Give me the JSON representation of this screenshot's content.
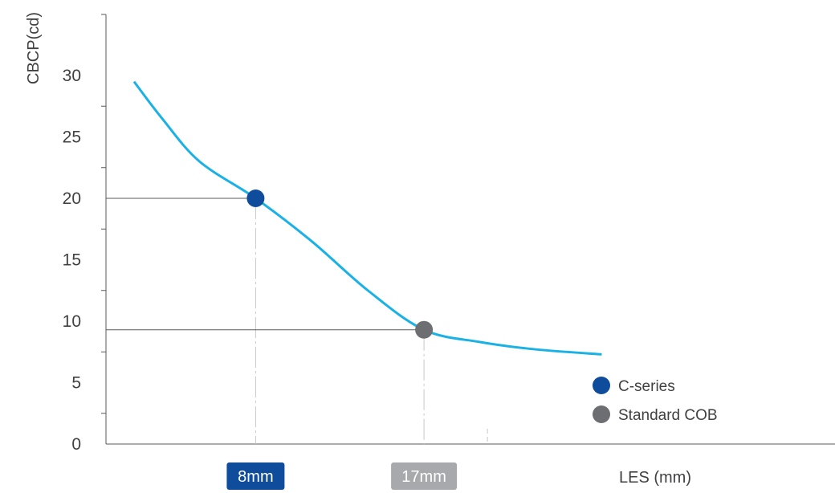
{
  "chart_data": {
    "type": "line",
    "ylabel": "CBCP(cd)",
    "xlabel": "LES (mm)",
    "yticks": [
      0,
      5,
      10,
      15,
      20,
      25,
      30
    ],
    "ylim": [
      0,
      32
    ],
    "xlim": [
      0,
      28
    ],
    "grid": false,
    "legend_position": "bottom-right",
    "curve": {
      "color": "#19b1e6",
      "x": [
        1.5,
        3,
        5,
        8,
        11,
        14,
        17,
        20,
        23,
        26.5
      ],
      "y": [
        29.5,
        26.5,
        23,
        20,
        16.5,
        12.5,
        9.3,
        8.3,
        7.7,
        7.3
      ]
    },
    "points": [
      {
        "name": "C-series",
        "x": 8,
        "y": 20,
        "x_label": "8mm",
        "color": "#0f4c9c"
      },
      {
        "name": "Standard COB",
        "x": 17,
        "y": 9.3,
        "x_label": "17mm",
        "color": "#6d6e71"
      }
    ],
    "x_label_colors": [
      "#0f4c9c",
      "#a7a9ac"
    ]
  }
}
